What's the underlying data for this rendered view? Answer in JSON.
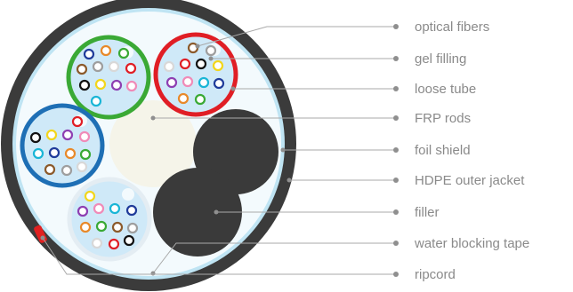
{
  "labels": {
    "optical_fibers": "optical fibers",
    "gel_filling": "gel filling",
    "loose_tube": "loose tube",
    "frp_rods": "FRP rods",
    "foil_shield": "foil shield",
    "hdpe_outer_jacket": "HDPE outer jacket",
    "filler": "filler",
    "water_blocking_tape": "water blocking tape",
    "ripcord": "ripcord"
  },
  "colors": {
    "jacket": "#3b3b3b",
    "tape": "#f3fafd",
    "foil_shield": "#bfe4f3",
    "gel": "#cfe9f8",
    "frp_rod": "#f5f4e9",
    "filler": "#3a3a3a",
    "ripcord": "#e02020",
    "tube_green": "#3aa935",
    "tube_red": "#e01e25",
    "tube_blue": "#1e6fb5",
    "tube_natural": "#e4edf3",
    "leader_line": "#a9a9a9",
    "label_text": "#8a8a8a"
  },
  "fiber_colors": [
    "#1f3b9a",
    "#e8892a",
    "#3aa935",
    "#8b5a2b",
    "#9e9e9e",
    "#ffffff",
    "#e01e25",
    "#111111",
    "#f2d61c",
    "#8e3fb2",
    "#f08bb8",
    "#19b5d6"
  ]
}
